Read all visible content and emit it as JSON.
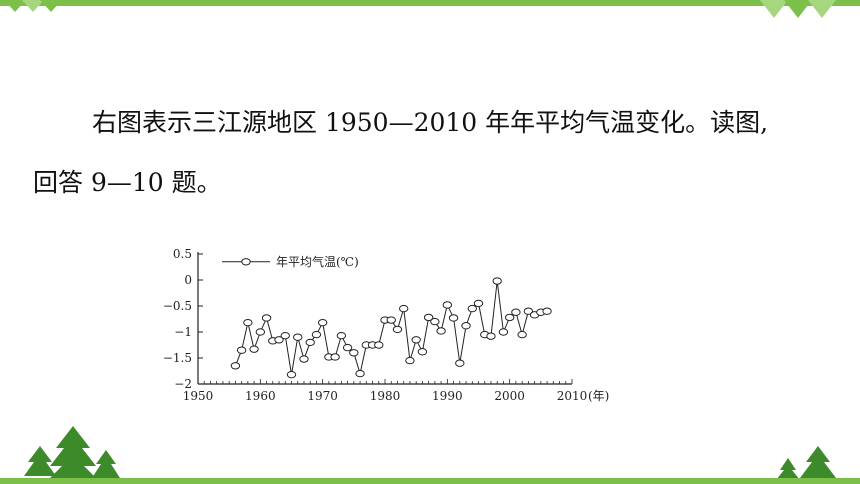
{
  "text": {
    "line1": "右图表示三江源地区 1950—2010 年年平均气温变化。读图,",
    "line2": "回答 9—10 题。"
  },
  "colors": {
    "accent": "#7cc04a",
    "tree": "#3d8a2b"
  },
  "chart_data": {
    "type": "line",
    "legend": "年平均气温(℃)",
    "x_unit": "(年)",
    "xlim": [
      1950,
      2010
    ],
    "ylim": [
      -2,
      0.5
    ],
    "x_ticks": [
      1950,
      1960,
      1970,
      1980,
      1990,
      2000,
      2010
    ],
    "y_ticks": [
      0.5,
      0,
      -0.5,
      -1,
      -1.5,
      -2
    ],
    "y_tick_labels": [
      "0.5",
      "0",
      "−0.5",
      "−1",
      "−1.5",
      "−2"
    ],
    "series": [
      {
        "name": "年平均气温(℃)",
        "x": [
          1956,
          1957,
          1958,
          1959,
          1960,
          1961,
          1962,
          1963,
          1964,
          1965,
          1966,
          1967,
          1968,
          1969,
          1970,
          1971,
          1972,
          1973,
          1974,
          1975,
          1976,
          1977,
          1978,
          1979,
          1980,
          1981,
          1982,
          1983,
          1984,
          1985,
          1986,
          1987,
          1988,
          1989,
          1990,
          1991,
          1992,
          1993,
          1994,
          1995,
          1996,
          1997,
          1998,
          1999,
          2000,
          2001,
          2002,
          2003,
          2004,
          2005,
          2006
        ],
        "y": [
          -1.65,
          -1.35,
          -0.82,
          -1.33,
          -1.0,
          -0.73,
          -1.17,
          -1.15,
          -1.07,
          -1.82,
          -1.1,
          -1.52,
          -1.2,
          -1.05,
          -0.82,
          -1.48,
          -1.48,
          -1.07,
          -1.3,
          -1.4,
          -1.8,
          -1.25,
          -1.25,
          -1.25,
          -0.77,
          -0.77,
          -0.95,
          -0.55,
          -1.55,
          -1.15,
          -1.38,
          -0.72,
          -0.8,
          -0.98,
          -0.48,
          -0.73,
          -1.6,
          -0.88,
          -0.55,
          -0.45,
          -1.05,
          -1.08,
          -0.02,
          -1.0,
          -0.72,
          -0.62,
          -1.05,
          -0.6,
          -0.67,
          -0.62,
          -0.6
        ]
      }
    ]
  }
}
